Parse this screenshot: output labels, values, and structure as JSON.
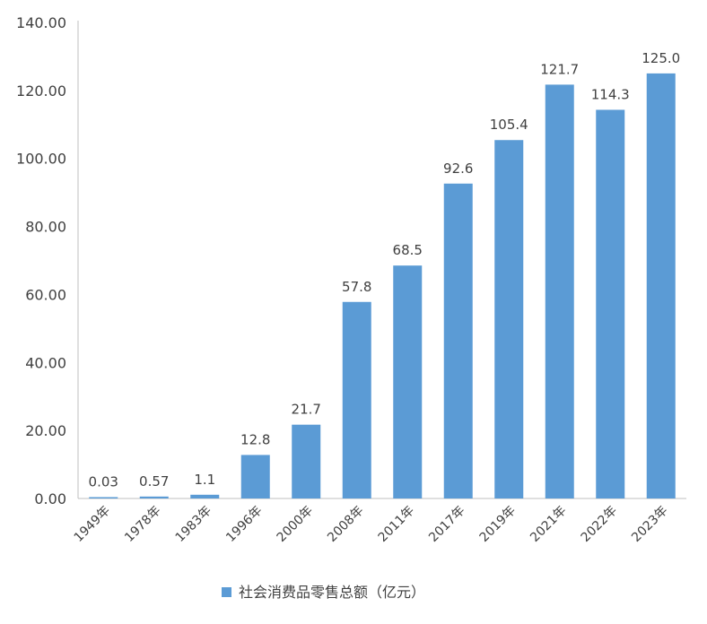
{
  "chart_data": {
    "type": "bar",
    "categories": [
      "1949年",
      "1978年",
      "1983年",
      "1996年",
      "2000年",
      "2008年",
      "2011年",
      "2017年",
      "2019年",
      "2021年",
      "2022年",
      "2023年"
    ],
    "series": [
      {
        "name": "社会消费品零售总额（亿元）",
        "values": [
          0.03,
          0.57,
          1.1,
          12.8,
          21.7,
          57.8,
          68.5,
          92.6,
          105.4,
          121.7,
          114.3,
          125.0
        ],
        "data_labels": [
          "0.03",
          "0.57",
          "1.1",
          "12.8",
          "21.7",
          "57.8",
          "68.5",
          "92.6",
          "105.4",
          "121.7",
          "114.3",
          "125.0"
        ],
        "color": "#5B9BD5"
      }
    ],
    "y_ticks": [
      "0.00",
      "20.00",
      "40.00",
      "60.00",
      "80.00",
      "100.00",
      "120.00",
      "140.00"
    ],
    "ylim": [
      0,
      140
    ],
    "grid": false,
    "legend_position": "bottom",
    "title": "",
    "xlabel": "",
    "ylabel": ""
  }
}
